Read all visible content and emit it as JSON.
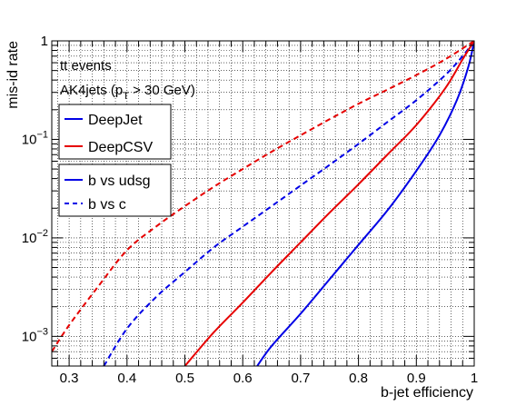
{
  "chart_data": {
    "type": "line",
    "xlabel": "b-jet efficiency",
    "ylabel": "mis-id rate",
    "xlim": [
      0.27,
      1.0
    ],
    "ylim": [
      0.0005,
      1.0
    ],
    "yscale": "log",
    "grid": true,
    "x_ticks": [
      {
        "value": 0.3,
        "label": "0.3"
      },
      {
        "value": 0.4,
        "label": "0.4"
      },
      {
        "value": 0.5,
        "label": "0.5"
      },
      {
        "value": 0.6,
        "label": "0.6"
      },
      {
        "value": 0.7,
        "label": "0.7"
      },
      {
        "value": 0.8,
        "label": "0.8"
      },
      {
        "value": 0.9,
        "label": "0.9"
      },
      {
        "value": 1.0,
        "label": "1"
      }
    ],
    "y_ticks": [
      {
        "value": 0.001,
        "base": "10",
        "exp": "−3",
        "plain": ""
      },
      {
        "value": 0.01,
        "base": "10",
        "exp": "−2",
        "plain": ""
      },
      {
        "value": 0.1,
        "base": "10",
        "exp": "−1",
        "plain": ""
      },
      {
        "value": 1.0,
        "base": "",
        "exp": "",
        "plain": "1"
      }
    ],
    "annotations": {
      "line1": "tt events",
      "line2_main": "AK4jets (p",
      "line2_sub": "T",
      "line2_rest": " > 30 GeV)"
    },
    "legend_taggers": [
      {
        "label": "DeepJet",
        "color": "#0000e6"
      },
      {
        "label": "DeepCSV",
        "color": "#e60000"
      }
    ],
    "legend_styles": [
      {
        "label": "b vs udsg",
        "dash": "solid"
      },
      {
        "label": "b vs c",
        "dash": "dashed"
      }
    ],
    "series": [
      {
        "tagger": "DeepJet",
        "style": "b vs udsg",
        "color": "#0000e6",
        "dash": "solid",
        "x": [
          0.625,
          0.65,
          0.7,
          0.75,
          0.8,
          0.85,
          0.9,
          0.94,
          0.97,
          0.99,
          1.0
        ],
        "y": [
          0.0005,
          0.0008,
          0.0017,
          0.0038,
          0.0085,
          0.019,
          0.048,
          0.11,
          0.25,
          0.55,
          1.0
        ]
      },
      {
        "tagger": "DeepJet",
        "style": "b vs c",
        "color": "#0000e6",
        "dash": "dashed",
        "x": [
          0.36,
          0.4,
          0.45,
          0.5,
          0.55,
          0.6,
          0.65,
          0.7,
          0.75,
          0.8,
          0.85,
          0.9,
          0.95,
          0.98,
          1.0
        ],
        "y": [
          0.0005,
          0.0012,
          0.0025,
          0.0045,
          0.008,
          0.013,
          0.021,
          0.034,
          0.055,
          0.09,
          0.15,
          0.25,
          0.45,
          0.7,
          1.0
        ]
      },
      {
        "tagger": "DeepCSV",
        "style": "b vs udsg",
        "color": "#e60000",
        "dash": "solid",
        "x": [
          0.5,
          0.55,
          0.6,
          0.65,
          0.7,
          0.75,
          0.8,
          0.85,
          0.9,
          0.95,
          0.98,
          1.0
        ],
        "y": [
          0.0005,
          0.0011,
          0.0022,
          0.0045,
          0.009,
          0.018,
          0.035,
          0.07,
          0.14,
          0.33,
          0.65,
          1.0
        ]
      },
      {
        "tagger": "DeepCSV",
        "style": "b vs c",
        "color": "#e60000",
        "dash": "dashed",
        "x": [
          0.27,
          0.3,
          0.35,
          0.4,
          0.45,
          0.5,
          0.55,
          0.6,
          0.65,
          0.7,
          0.75,
          0.8,
          0.85,
          0.9,
          0.95,
          1.0
        ],
        "y": [
          0.0007,
          0.0013,
          0.0032,
          0.0075,
          0.013,
          0.021,
          0.033,
          0.05,
          0.075,
          0.11,
          0.16,
          0.23,
          0.32,
          0.45,
          0.65,
          1.0
        ]
      }
    ]
  }
}
